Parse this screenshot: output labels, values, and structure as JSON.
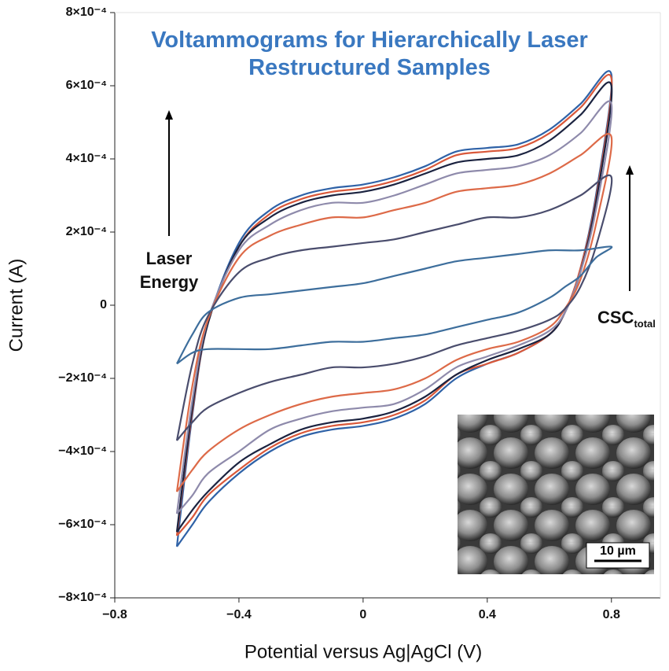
{
  "chart_data": {
    "type": "line",
    "title": "Voltammograms for Hierarchically Laser Restructured Samples",
    "x_label": "Potential versus Ag|AgCl (V)",
    "y_label": "Current (A)",
    "annotations": [
      {
        "lines": [
          "Laser",
          "Energy"
        ]
      },
      {
        "text": "CSC",
        "subscript": "total"
      }
    ],
    "inset_scale": "10 µm",
    "xlim": [
      -0.8,
      0.95
    ],
    "ylim": [
      -0.0008,
      0.0008
    ],
    "xticks": [
      {
        "value": -0.8,
        "label": "−0.8"
      },
      {
        "value": -0.4,
        "label": "−0.4"
      },
      0,
      0.4,
      0.8
    ],
    "yticks": [
      {
        "value": -0.0008,
        "label": "−8×10⁻⁴"
      },
      {
        "value": -0.0006,
        "label": "−6×10⁻⁴"
      },
      {
        "value": -0.0004,
        "label": "−4×10⁻⁴"
      },
      {
        "value": -0.0002,
        "label": "−2×10⁻⁴"
      },
      0,
      {
        "value": 0.0002,
        "label": "2×10⁻⁴"
      },
      {
        "value": 0.0004,
        "label": "4×10⁻⁴"
      },
      {
        "value": 0.0006,
        "label": "6×10⁻⁴"
      },
      {
        "value": 0.0008,
        "label": "8×10⁻⁴"
      }
    ],
    "x": [
      -0.6,
      -0.55,
      -0.5,
      -0.4,
      -0.3,
      -0.2,
      -0.1,
      0,
      0.1,
      0.2,
      0.3,
      0.4,
      0.5,
      0.6,
      0.7,
      0.8,
      0.75,
      0.7,
      0.65,
      0.6,
      0.5,
      0.4,
      0.3,
      0.2,
      0.1,
      0,
      -0.1,
      -0.2,
      -0.3,
      -0.4,
      -0.5,
      -0.55,
      -0.6
    ],
    "series": [
      {
        "color": "#2f62a7",
        "values": [
          -0.00066,
          -0.0003,
          -5e-05,
          0.00017,
          0.00026,
          0.0003,
          0.00032,
          0.00033,
          0.00035,
          0.00038,
          0.00042,
          0.00043,
          0.00044,
          0.00048,
          0.00055,
          0.00063,
          0.0003,
          0.0001,
          -2e-05,
          -8e-05,
          -0.00013,
          -0.00016,
          -0.0002,
          -0.00027,
          -0.00031,
          -0.00033,
          -0.00034,
          -0.00036,
          -0.0004,
          -0.00046,
          -0.00054,
          -0.0006,
          -0.00066
        ]
      },
      {
        "color": "#d9583a",
        "values": [
          -0.00063,
          -0.00029,
          -5e-05,
          0.00016,
          0.00025,
          0.00029,
          0.00031,
          0.00032,
          0.00034,
          0.00037,
          0.00041,
          0.00042,
          0.00043,
          0.00047,
          0.00054,
          0.00062,
          0.00029,
          0.0001,
          -2e-05,
          -8e-05,
          -0.00013,
          -0.00016,
          -0.00019,
          -0.00026,
          -0.0003,
          -0.00032,
          -0.00033,
          -0.00035,
          -0.00039,
          -0.00045,
          -0.00052,
          -0.00058,
          -0.00063
        ]
      },
      {
        "color": "#1b2340",
        "values": [
          -0.00062,
          -0.00028,
          -5e-05,
          0.00016,
          0.00024,
          0.00028,
          0.0003,
          0.00031,
          0.00033,
          0.00036,
          0.00039,
          0.0004,
          0.00041,
          0.00045,
          0.00052,
          0.0006,
          0.00028,
          9e-05,
          -2e-05,
          -8e-05,
          -0.00012,
          -0.00015,
          -0.00019,
          -0.00025,
          -0.00029,
          -0.00031,
          -0.00032,
          -0.00034,
          -0.00038,
          -0.00043,
          -0.00051,
          -0.00056,
          -0.00062
        ]
      },
      {
        "color": "#8e8aab",
        "values": [
          -0.00057,
          -0.00026,
          -4e-05,
          0.00015,
          0.00022,
          0.00026,
          0.00028,
          0.00028,
          0.0003,
          0.00033,
          0.00036,
          0.00037,
          0.00038,
          0.00041,
          0.00047,
          0.00055,
          0.00026,
          9e-05,
          -2e-05,
          -7e-05,
          -0.00011,
          -0.00014,
          -0.00017,
          -0.00023,
          -0.00027,
          -0.00028,
          -0.00029,
          -0.00031,
          -0.00034,
          -0.0004,
          -0.00046,
          -0.00052,
          -0.00057
        ]
      },
      {
        "color": "#dd6a48",
        "values": [
          -0.00051,
          -0.00022,
          -4e-05,
          0.00013,
          0.00019,
          0.00022,
          0.00024,
          0.00024,
          0.00026,
          0.00028,
          0.00031,
          0.00032,
          0.00033,
          0.00036,
          0.00041,
          0.00046,
          0.00022,
          7e-05,
          -1e-05,
          -6e-05,
          -0.0001,
          -0.00012,
          -0.00015,
          -0.0002,
          -0.00023,
          -0.00024,
          -0.00025,
          -0.00027,
          -0.0003,
          -0.00034,
          -0.0004,
          -0.00045,
          -0.00051
        ]
      },
      {
        "color": "#4a4d6d",
        "values": [
          -0.00037,
          -0.00016,
          -3e-05,
          9e-05,
          0.00013,
          0.00015,
          0.00016,
          0.00017,
          0.00018,
          0.0002,
          0.00022,
          0.00024,
          0.00024,
          0.00026,
          0.0003,
          0.00035,
          0.00016,
          5e-05,
          -1e-05,
          -4e-05,
          -7e-05,
          -9e-05,
          -0.00011,
          -0.00014,
          -0.00016,
          -0.00017,
          -0.00017,
          -0.00019,
          -0.00021,
          -0.00024,
          -0.00028,
          -0.00032,
          -0.00037
        ]
      },
      {
        "color": "#3d6e9c",
        "values": [
          -0.00016,
          -8e-05,
          -2e-05,
          2e-05,
          3e-05,
          4e-05,
          5e-05,
          6e-05,
          8e-05,
          0.0001,
          0.00012,
          0.00013,
          0.00014,
          0.00015,
          0.00015,
          0.00016,
          0.00013,
          8e-05,
          5e-05,
          2e-05,
          -2e-05,
          -4e-05,
          -6e-05,
          -8e-05,
          -9e-05,
          -0.0001,
          -0.0001,
          -0.00011,
          -0.00012,
          -0.00012,
          -0.00012,
          -0.00013,
          -0.00016
        ]
      }
    ]
  }
}
